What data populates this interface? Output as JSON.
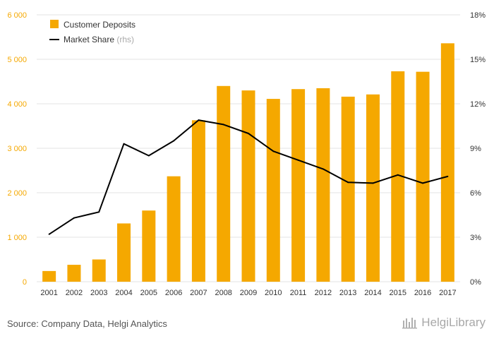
{
  "chart_data": {
    "type": "bar+line",
    "categories": [
      "2001",
      "2002",
      "2003",
      "2004",
      "2005",
      "2006",
      "2007",
      "2008",
      "2009",
      "2010",
      "2011",
      "2012",
      "2013",
      "2014",
      "2015",
      "2016",
      "2017"
    ],
    "series": [
      {
        "name": "Customer Deposits",
        "type": "bar",
        "axis": "left",
        "color": "#f5a800",
        "values": [
          240,
          380,
          500,
          1310,
          1600,
          2370,
          3630,
          4400,
          4300,
          4110,
          4330,
          4350,
          4160,
          4210,
          4730,
          4720,
          5360
        ]
      },
      {
        "name": "Market Share",
        "name_suffix": "(rhs)",
        "type": "line",
        "axis": "right",
        "color": "#000000",
        "values": [
          3.2,
          4.3,
          4.7,
          9.3,
          8.5,
          9.5,
          10.9,
          10.6,
          10.0,
          8.8,
          8.2,
          7.6,
          6.7,
          6.65,
          7.2,
          6.65,
          7.1
        ]
      }
    ],
    "yleft": {
      "min": 0,
      "max": 6000,
      "ticks": [
        0,
        1000,
        2000,
        3000,
        4000,
        5000,
        6000
      ],
      "tick_labels": [
        "0",
        "1 000",
        "2 000",
        "3 000",
        "4 000",
        "5 000",
        "6 000"
      ],
      "color": "#f5a800"
    },
    "yright": {
      "min": 0,
      "max": 18,
      "ticks": [
        0,
        3,
        6,
        9,
        12,
        15,
        18
      ],
      "tick_labels": [
        "0%",
        "3%",
        "6%",
        "9%",
        "12%",
        "15%",
        "18%"
      ],
      "color": "#333333"
    },
    "grid": true,
    "legend_position": "top-left"
  },
  "footer": {
    "source": "Source: Company Data, Helgi Analytics",
    "logo_text": "HelgiLibrary"
  }
}
